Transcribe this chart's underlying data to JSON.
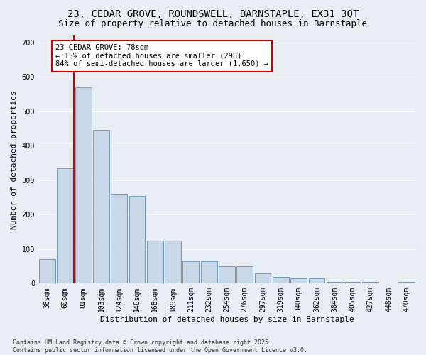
{
  "title_line1": "23, CEDAR GROVE, ROUNDSWELL, BARNSTAPLE, EX31 3QT",
  "title_line2": "Size of property relative to detached houses in Barnstaple",
  "xlabel": "Distribution of detached houses by size in Barnstaple",
  "ylabel": "Number of detached properties",
  "categories": [
    "38sqm",
    "60sqm",
    "81sqm",
    "103sqm",
    "124sqm",
    "146sqm",
    "168sqm",
    "189sqm",
    "211sqm",
    "232sqm",
    "254sqm",
    "276sqm",
    "297sqm",
    "319sqm",
    "340sqm",
    "362sqm",
    "384sqm",
    "405sqm",
    "427sqm",
    "448sqm",
    "470sqm"
  ],
  "values": [
    70,
    335,
    570,
    445,
    260,
    255,
    125,
    125,
    65,
    65,
    50,
    50,
    30,
    20,
    15,
    15,
    5,
    5,
    5,
    0,
    5
  ],
  "bar_color": "#c8d8e8",
  "bar_edge_color": "#6090b0",
  "highlight_line_color": "#cc0000",
  "annotation_text": "23 CEDAR GROVE: 78sqm\n← 15% of detached houses are smaller (298)\n84% of semi-detached houses are larger (1,650) →",
  "annotation_box_facecolor": "#ffffff",
  "annotation_box_edgecolor": "#cc0000",
  "ylim": [
    0,
    720
  ],
  "yticks": [
    0,
    100,
    200,
    300,
    400,
    500,
    600,
    700
  ],
  "background_color": "#e8eef4",
  "grid_color": "#ffffff",
  "footer_text": "Contains HM Land Registry data © Crown copyright and database right 2025.\nContains public sector information licensed under the Open Government Licence v3.0.",
  "title_fontsize": 10,
  "subtitle_fontsize": 9,
  "ylabel_fontsize": 8,
  "xlabel_fontsize": 8,
  "tick_fontsize": 7,
  "annotation_fontsize": 7.5,
  "footer_fontsize": 6
}
